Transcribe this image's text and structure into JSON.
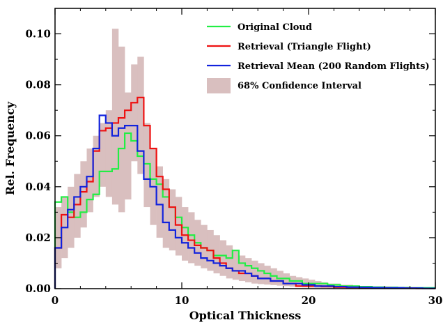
{
  "chart_data": {
    "type": "line",
    "title": "",
    "xlabel": "Optical Thickness",
    "ylabel": "Rel. Frequency",
    "xlim": [
      0,
      30
    ],
    "ylim": [
      0,
      0.11
    ],
    "x_ticks": [
      0,
      10,
      20,
      30
    ],
    "x_tick_labels": [
      "0",
      "10",
      "20",
      "30"
    ],
    "y_ticks": [
      0.0,
      0.02,
      0.04,
      0.06,
      0.08,
      0.1
    ],
    "y_tick_labels": [
      "0.00",
      "0.02",
      "0.04",
      "0.06",
      "0.08",
      "0.10"
    ],
    "grid": false,
    "legend_position": "top-right",
    "bin_edges": [
      0,
      0.5,
      1,
      1.5,
      2,
      2.5,
      3,
      3.5,
      4,
      4.5,
      5,
      5.5,
      6,
      6.5,
      7,
      7.5,
      8,
      8.5,
      9,
      9.5,
      10,
      10.5,
      11,
      11.5,
      12,
      12.5,
      13,
      13.5,
      14,
      14.5,
      15,
      15.5,
      16,
      16.5,
      17,
      17.5,
      18,
      18.5,
      19,
      19.5,
      20,
      20.5,
      21,
      21.5,
      22,
      22.5,
      23,
      23.5,
      24,
      24.5,
      25,
      25.5,
      26,
      26.5,
      27,
      27.5,
      28,
      28.5,
      29,
      29.5,
      30
    ],
    "series": [
      {
        "name": "Original Cloud",
        "style": "step",
        "color": "#22ee44",
        "values": [
          0.034,
          0.036,
          0.03,
          0.028,
          0.03,
          0.035,
          0.037,
          0.046,
          0.046,
          0.047,
          0.055,
          0.061,
          0.058,
          0.052,
          0.049,
          0.043,
          0.041,
          0.036,
          0.032,
          0.028,
          0.024,
          0.021,
          0.018,
          0.016,
          0.015,
          0.013,
          0.013,
          0.012,
          0.015,
          0.01,
          0.009,
          0.008,
          0.007,
          0.006,
          0.005,
          0.004,
          0.004,
          0.003,
          0.003,
          0.002,
          0.002,
          0.002,
          0.002,
          0.0015,
          0.0015,
          0.001,
          0.001,
          0.001,
          0.0008,
          0.0008,
          0.0006,
          0.0006,
          0.0005,
          0.0005,
          0.0004,
          0.0004,
          0.0003,
          0.0003,
          0.0003,
          0.0003
        ]
      },
      {
        "name": "Retrieval (Triangle Flight)",
        "style": "step",
        "color": "#ee1111",
        "values": [
          0.016,
          0.029,
          0.028,
          0.033,
          0.038,
          0.042,
          0.054,
          0.062,
          0.063,
          0.065,
          0.067,
          0.07,
          0.073,
          0.075,
          0.064,
          0.055,
          0.044,
          0.039,
          0.032,
          0.025,
          0.021,
          0.019,
          0.017,
          0.016,
          0.015,
          0.012,
          0.01,
          0.008,
          0.007,
          0.006,
          0.006,
          0.005,
          0.004,
          0.004,
          0.003,
          0.003,
          0.002,
          0.002,
          0.001,
          0.001,
          0.001,
          0.001,
          0.0008,
          0.0008,
          0.0006,
          0.0006,
          0.0005,
          0.0005,
          0.0004,
          0.0004,
          0.0003,
          0.0003,
          0.0003,
          0.0002,
          0.0002,
          0.0002,
          0.0002,
          0.0001,
          0.0001,
          0.0001
        ]
      },
      {
        "name": "Retrieval Mean (200 Random Flights)",
        "style": "step",
        "color": "#1122dd",
        "values": [
          0.016,
          0.024,
          0.031,
          0.036,
          0.04,
          0.044,
          0.055,
          0.068,
          0.065,
          0.06,
          0.063,
          0.064,
          0.064,
          0.054,
          0.043,
          0.04,
          0.033,
          0.026,
          0.023,
          0.02,
          0.018,
          0.016,
          0.014,
          0.012,
          0.011,
          0.01,
          0.009,
          0.008,
          0.007,
          0.007,
          0.006,
          0.005,
          0.004,
          0.004,
          0.003,
          0.003,
          0.002,
          0.002,
          0.002,
          0.0015,
          0.0015,
          0.001,
          0.001,
          0.001,
          0.0008,
          0.0008,
          0.0006,
          0.0006,
          0.0005,
          0.0005,
          0.0004,
          0.0004,
          0.0003,
          0.0003,
          0.0003,
          0.0002,
          0.0002,
          0.0002,
          0.0001,
          0.0001
        ]
      }
    ],
    "confidence_band": {
      "name": "68% Confidence Interval",
      "color": "#d9bfbf",
      "lower": [
        0.008,
        0.012,
        0.016,
        0.02,
        0.024,
        0.03,
        0.036,
        0.04,
        0.036,
        0.033,
        0.03,
        0.035,
        0.05,
        0.045,
        0.032,
        0.025,
        0.02,
        0.016,
        0.015,
        0.013,
        0.011,
        0.01,
        0.009,
        0.008,
        0.007,
        0.006,
        0.005,
        0.004,
        0.0035,
        0.003,
        0.0025,
        0.002,
        0.0018,
        0.0016,
        0.0014,
        0.0012,
        0.001,
        0.0008,
        0.0006,
        0.0005,
        0.0004,
        0.0003,
        0.0003,
        0.0002,
        0.0002,
        0.0001,
        0.0001,
        0.0001,
        0.0001,
        0.0,
        0.0,
        0.0,
        0.0,
        0.0,
        0.0,
        0.0,
        0.0,
        0.0,
        0.0,
        0.0
      ],
      "upper": [
        0.032,
        0.036,
        0.04,
        0.045,
        0.05,
        0.055,
        0.06,
        0.065,
        0.07,
        0.102,
        0.095,
        0.077,
        0.088,
        0.091,
        0.065,
        0.055,
        0.048,
        0.043,
        0.039,
        0.036,
        0.032,
        0.03,
        0.027,
        0.025,
        0.023,
        0.021,
        0.019,
        0.017,
        0.015,
        0.013,
        0.012,
        0.011,
        0.01,
        0.009,
        0.008,
        0.007,
        0.006,
        0.005,
        0.0045,
        0.004,
        0.0035,
        0.003,
        0.0025,
        0.002,
        0.002,
        0.0015,
        0.0015,
        0.001,
        0.001,
        0.0008,
        0.0008,
        0.0006,
        0.0006,
        0.0005,
        0.0005,
        0.0004,
        0.0004,
        0.0003,
        0.0003,
        0.0003
      ]
    }
  }
}
